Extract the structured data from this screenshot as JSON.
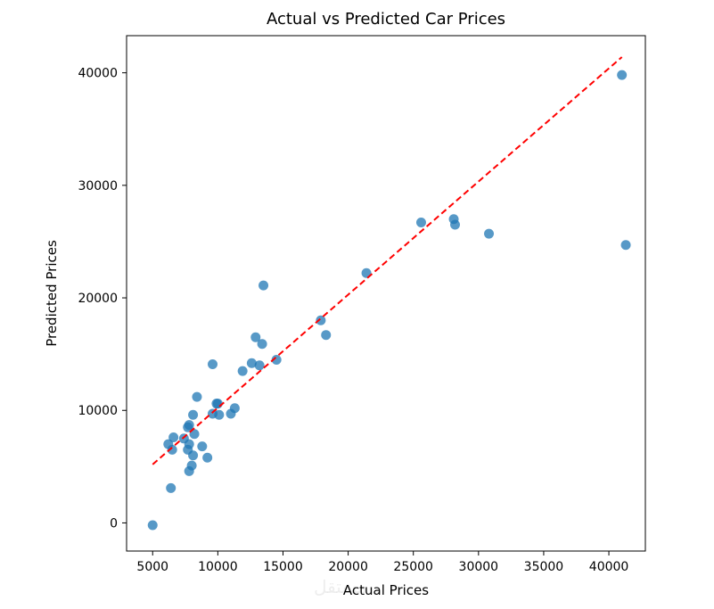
{
  "chart_data": {
    "type": "scatter",
    "title": "Actual vs Predicted Car Prices",
    "xlabel": "Actual Prices",
    "ylabel": "Predicted Prices",
    "xlim": [
      3000,
      42800
    ],
    "ylim": [
      -2500,
      43300
    ],
    "xticks": [
      5000,
      10000,
      15000,
      20000,
      25000,
      30000,
      35000,
      40000
    ],
    "yticks": [
      0,
      10000,
      20000,
      30000,
      40000
    ],
    "xtick_labels": [
      "5000",
      "10000",
      "15000",
      "20000",
      "25000",
      "30000",
      "35000",
      "40000"
    ],
    "ytick_labels": [
      "0",
      "10000",
      "20000",
      "30000",
      "40000"
    ],
    "grid": false,
    "point_color": "#1f77b4",
    "reference_line": {
      "name": "perfect-prediction",
      "style": "dashed",
      "color": "#ff0000",
      "x": [
        5000,
        41000
      ],
      "y": [
        5200,
        41400
      ]
    },
    "series": [
      {
        "name": "predictions",
        "points": [
          [
            5000,
            -200
          ],
          [
            6400,
            3100
          ],
          [
            6200,
            7000
          ],
          [
            6500,
            6500
          ],
          [
            6600,
            7600
          ],
          [
            7400,
            7500
          ],
          [
            7700,
            8500
          ],
          [
            7800,
            8700
          ],
          [
            7700,
            6500
          ],
          [
            7800,
            7000
          ],
          [
            7800,
            4600
          ],
          [
            8000,
            5100
          ],
          [
            8100,
            6000
          ],
          [
            8200,
            7900
          ],
          [
            8100,
            9600
          ],
          [
            8400,
            11200
          ],
          [
            8800,
            6800
          ],
          [
            9200,
            5800
          ],
          [
            9600,
            9700
          ],
          [
            9600,
            14100
          ],
          [
            9900,
            10600
          ],
          [
            10000,
            10600
          ],
          [
            10100,
            9600
          ],
          [
            11000,
            9700
          ],
          [
            11300,
            10200
          ],
          [
            11900,
            13500
          ],
          [
            12600,
            14200
          ],
          [
            12900,
            16500
          ],
          [
            13200,
            14000
          ],
          [
            13400,
            15900
          ],
          [
            13500,
            21100
          ],
          [
            14500,
            14500
          ],
          [
            17900,
            18000
          ],
          [
            18300,
            16700
          ],
          [
            21400,
            22200
          ],
          [
            25600,
            26700
          ],
          [
            28100,
            27000
          ],
          [
            28200,
            26500
          ],
          [
            30800,
            25700
          ],
          [
            41000,
            39800
          ],
          [
            41300,
            24700
          ]
        ]
      }
    ]
  },
  "watermark": "مستقل"
}
